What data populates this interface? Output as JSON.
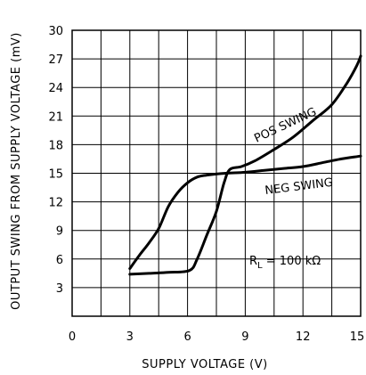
{
  "chart_data": {
    "type": "line",
    "title": "",
    "xlabel": "SUPPLY VOLTAGE (V)",
    "ylabel": "OUTPUT SWING FROM SUPPLY VOLTAGE (mV)",
    "xlim": [
      0,
      15
    ],
    "ylim": [
      0,
      30
    ],
    "x_ticks": [
      0,
      3,
      6,
      9,
      12,
      15
    ],
    "y_ticks": [
      3,
      6,
      9,
      12,
      15,
      18,
      21,
      24,
      27,
      30
    ],
    "grid": true,
    "series": [
      {
        "name": "POS SWING",
        "points": [
          [
            3,
            4.4
          ],
          [
            4,
            4.5
          ],
          [
            5,
            4.6
          ],
          [
            6.1,
            4.8
          ],
          [
            6.5,
            6
          ],
          [
            7,
            8.5
          ],
          [
            7.5,
            11
          ],
          [
            7.9,
            14
          ],
          [
            8.2,
            15.4
          ],
          [
            8.8,
            15.7
          ],
          [
            9.5,
            16.3
          ],
          [
            10.5,
            17.5
          ],
          [
            11.5,
            18.8
          ],
          [
            12.5,
            20.5
          ],
          [
            13.5,
            22.2
          ],
          [
            14.3,
            24.5
          ],
          [
            14.8,
            26.3
          ],
          [
            15,
            27.3
          ]
        ]
      },
      {
        "name": "NEG SWING",
        "points": [
          [
            3,
            5
          ],
          [
            3.5,
            6.4
          ],
          [
            4,
            7.7
          ],
          [
            4.5,
            9.2
          ],
          [
            5,
            11.5
          ],
          [
            5.5,
            13
          ],
          [
            6,
            14
          ],
          [
            6.5,
            14.6
          ],
          [
            7,
            14.8
          ],
          [
            8,
            15
          ],
          [
            9,
            15.1
          ],
          [
            10,
            15.3
          ],
          [
            11,
            15.5
          ],
          [
            12,
            15.7
          ],
          [
            13,
            16.1
          ],
          [
            14,
            16.5
          ],
          [
            15,
            16.8
          ]
        ]
      }
    ],
    "annotations": {
      "load": {
        "r": "R",
        "sub": "L",
        "rest": " = 100 kΩ"
      }
    }
  }
}
